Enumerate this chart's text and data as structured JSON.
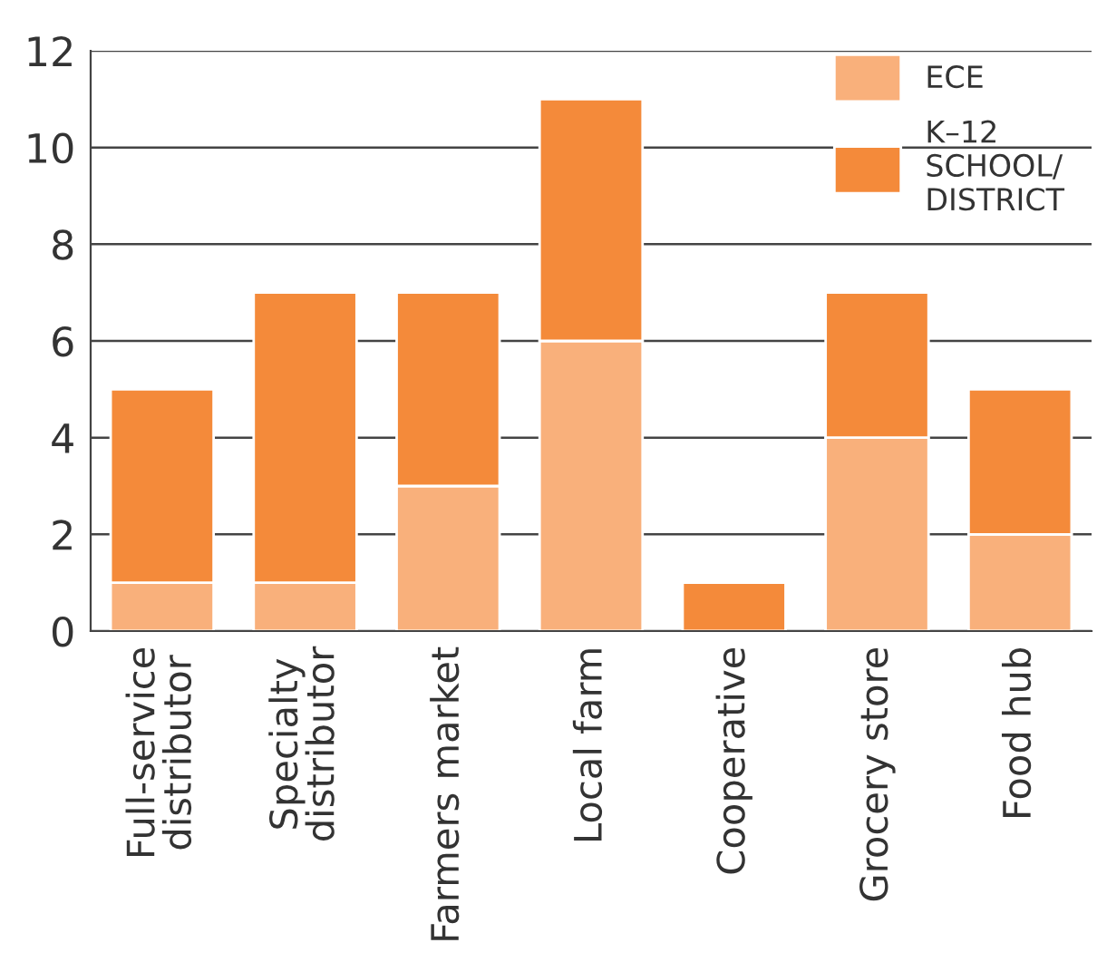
{
  "chart_data": {
    "type": "bar",
    "stacked": true,
    "categories": [
      "Full-service\ndistributor",
      "Specialty\ndistributor",
      "Farmers market",
      "Local farm",
      "Cooperative",
      "Grocery store",
      "Food hub"
    ],
    "series": [
      {
        "name": "ECE",
        "color": "#f9b07b",
        "values": [
          1,
          1,
          3,
          6,
          0,
          4,
          2
        ]
      },
      {
        "name": "K–12\nSCHOOL/\nDISTRICT",
        "color": "#f48a3a",
        "values": [
          4,
          6,
          4,
          5,
          1,
          3,
          3
        ]
      }
    ],
    "ylim": [
      0,
      12
    ],
    "yticks": [
      0,
      2,
      4,
      6,
      8,
      10,
      12
    ],
    "grid": "y",
    "legend": "top right"
  }
}
